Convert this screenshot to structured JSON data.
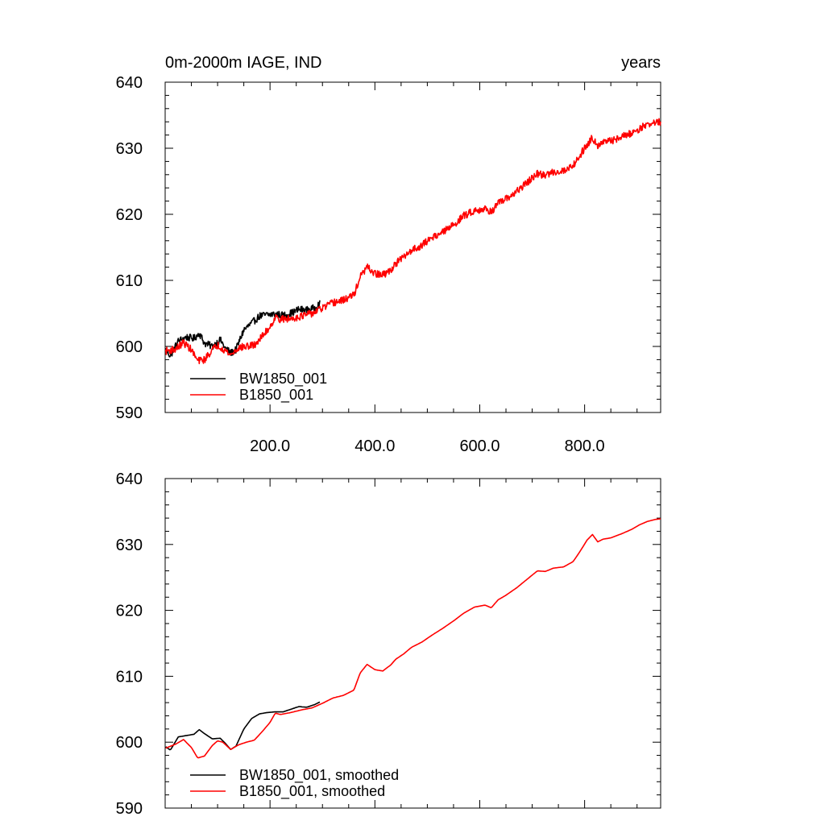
{
  "title_left": "0m-2000m IAGE, IND",
  "title_right": "years",
  "colors": {
    "series_bw": "#000000",
    "series_b": "#ff0000",
    "axis": "#000000"
  },
  "chart_data": [
    {
      "type": "line",
      "xlim": [
        0,
        945
      ],
      "ylim": [
        590,
        640
      ],
      "y_ticks": [
        590,
        600,
        610,
        620,
        630,
        640
      ],
      "y_tick_labels": [
        "590",
        "600",
        "610",
        "620",
        "630",
        "640"
      ],
      "x_ticks": [
        200,
        400,
        600,
        800
      ],
      "x_tick_labels": [
        "200.0",
        "400.0",
        "600.0",
        "800.0"
      ],
      "grid": false,
      "legend_position": "bottom-left",
      "series": [
        {
          "name": "BW1850_001",
          "color": "#000000",
          "noisy": true,
          "x": [
            1,
            10,
            25,
            40,
            55,
            65,
            75,
            90,
            105,
            115,
            125,
            135,
            150,
            165,
            180,
            195,
            210,
            225,
            240,
            255,
            270,
            285,
            295
          ],
          "y": [
            599.5,
            598.6,
            600.8,
            601.4,
            601.2,
            602.0,
            600.5,
            600.0,
            601.0,
            599.7,
            599.0,
            599.5,
            602.5,
            603.5,
            604.6,
            604.8,
            604.9,
            604.7,
            605.0,
            605.6,
            605.5,
            605.8,
            606.5
          ]
        },
        {
          "name": "B1850_001",
          "color": "#ff0000",
          "noisy": true,
          "x": [
            1,
            20,
            35,
            50,
            62,
            75,
            90,
            100,
            110,
            125,
            140,
            155,
            170,
            185,
            200,
            210,
            220,
            240,
            260,
            280,
            300,
            320,
            340,
            360,
            372,
            385,
            400,
            415,
            430,
            440,
            455,
            470,
            490,
            510,
            530,
            550,
            570,
            590,
            610,
            622,
            635,
            650,
            670,
            690,
            710,
            725,
            740,
            760,
            778,
            790,
            805,
            815,
            825,
            835,
            850,
            870,
            890,
            905,
            920,
            935,
            945
          ],
          "y": [
            599.3,
            599.6,
            600.6,
            599.5,
            597.8,
            598.0,
            599.5,
            600.2,
            599.7,
            598.7,
            599.8,
            600.0,
            600.2,
            601.5,
            603.0,
            604.4,
            604.1,
            604.2,
            604.6,
            605.0,
            605.8,
            606.6,
            607.0,
            607.8,
            610.5,
            612.0,
            611.0,
            610.8,
            611.5,
            612.6,
            613.5,
            614.6,
            615.3,
            616.6,
            617.3,
            618.4,
            619.8,
            620.6,
            620.8,
            620.4,
            621.6,
            622.3,
            623.4,
            624.8,
            626.1,
            625.9,
            626.4,
            626.6,
            627.4,
            628.8,
            630.6,
            631.6,
            630.5,
            630.9,
            631.1,
            631.7,
            632.3,
            633.0,
            633.6,
            633.9,
            634.0
          ]
        }
      ]
    },
    {
      "type": "line",
      "xlim": [
        0,
        945
      ],
      "ylim": [
        590,
        640
      ],
      "y_ticks": [
        590,
        600,
        610,
        620,
        630,
        640
      ],
      "y_tick_labels": [
        "590",
        "600",
        "610",
        "620",
        "630",
        "640"
      ],
      "x_ticks": [
        200,
        400,
        600,
        800
      ],
      "x_tick_labels": [],
      "grid": false,
      "legend_position": "bottom-left",
      "series": [
        {
          "name": "BW1850_001, smoothed",
          "color": "#000000",
          "noisy": false,
          "x": [
            1,
            10,
            25,
            40,
            55,
            65,
            75,
            90,
            105,
            115,
            125,
            135,
            150,
            165,
            180,
            195,
            210,
            225,
            240,
            255,
            270,
            285,
            295
          ],
          "y": [
            599.3,
            598.8,
            600.8,
            601.0,
            601.2,
            601.9,
            601.3,
            600.5,
            600.6,
            599.8,
            598.9,
            599.4,
            602.0,
            603.6,
            604.3,
            604.5,
            604.6,
            604.6,
            605.0,
            605.4,
            605.3,
            605.7,
            606.1
          ]
        },
        {
          "name": "B1850_001, smoothed",
          "color": "#ff0000",
          "noisy": false,
          "x": [
            1,
            20,
            35,
            50,
            62,
            75,
            90,
            100,
            110,
            125,
            140,
            155,
            170,
            185,
            200,
            210,
            220,
            240,
            260,
            280,
            300,
            320,
            340,
            360,
            372,
            385,
            400,
            415,
            430,
            440,
            455,
            470,
            490,
            510,
            530,
            550,
            570,
            590,
            610,
            622,
            635,
            650,
            670,
            690,
            710,
            725,
            740,
            760,
            778,
            790,
            805,
            815,
            825,
            835,
            850,
            870,
            890,
            905,
            920,
            935,
            945
          ],
          "y": [
            599.1,
            599.7,
            600.4,
            599.2,
            597.6,
            597.9,
            599.5,
            600.2,
            600.0,
            598.9,
            599.6,
            600.0,
            600.3,
            601.6,
            603.0,
            604.4,
            604.2,
            604.5,
            604.9,
            605.2,
            605.9,
            606.7,
            607.1,
            607.9,
            610.5,
            611.8,
            611.0,
            610.8,
            611.7,
            612.6,
            613.4,
            614.4,
            615.2,
            616.3,
            617.3,
            618.4,
            619.6,
            620.5,
            620.8,
            620.4,
            621.6,
            622.3,
            623.4,
            624.7,
            626.0,
            625.9,
            626.4,
            626.6,
            627.4,
            628.8,
            630.7,
            631.5,
            630.4,
            630.8,
            631.0,
            631.6,
            632.3,
            633.0,
            633.5,
            633.8,
            633.9
          ]
        }
      ]
    }
  ]
}
